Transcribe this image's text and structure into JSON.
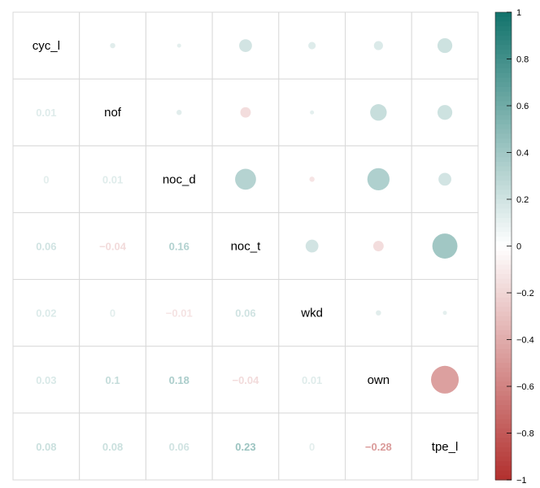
{
  "chart_data": {
    "type": "heatmap",
    "title": "",
    "variables": [
      "cyc_l",
      "nof",
      "noc_d",
      "noc_t",
      "wkd",
      "own",
      "tpe_l"
    ],
    "matrix": [
      [
        1,
        0.01,
        0,
        0.06,
        0.02,
        0.03,
        0.08
      ],
      [
        0.01,
        1,
        0.01,
        -0.04,
        0,
        0.1,
        0.08
      ],
      [
        0,
        0.01,
        1,
        0.16,
        -0.01,
        0.18,
        0.06
      ],
      [
        0.06,
        -0.04,
        0.16,
        1,
        0.06,
        -0.04,
        0.23
      ],
      [
        0.02,
        0,
        -0.01,
        0.06,
        1,
        0.01,
        0
      ],
      [
        0.03,
        0.1,
        0.18,
        -0.04,
        0.01,
        1,
        -0.28
      ],
      [
        0.08,
        0.08,
        0.06,
        0.23,
        0,
        -0.28,
        1
      ]
    ],
    "lower_labels": [
      [
        "0.01",
        "nof"
      ],
      [
        "0",
        "0.01",
        "noc_d"
      ],
      [
        "0.06",
        "−0.04",
        "0.16",
        "noc_t"
      ],
      [
        "0.02",
        "0",
        "−0.01",
        "0.06",
        "wkd"
      ],
      [
        "0.03",
        "0.1",
        "0.18",
        "−0.04",
        "0.01",
        "own"
      ],
      [
        "0.08",
        "0.08",
        "0.06",
        "0.23",
        "0",
        "−0.28",
        "tpe_l"
      ]
    ],
    "upper_method": "circle",
    "lower_method": "number",
    "colorbar": {
      "range": [
        -1,
        1
      ],
      "ticks": [
        "1",
        "0.8",
        "0.6",
        "0.4",
        "0.2",
        "0",
        "−0.2",
        "−0.4",
        "−0.6",
        "−0.8",
        "−1"
      ],
      "colors": {
        "negative": "#B2302E",
        "neutral": "#FFFFFF",
        "positive": "#12736C"
      }
    },
    "grid": true,
    "legend": "right"
  }
}
